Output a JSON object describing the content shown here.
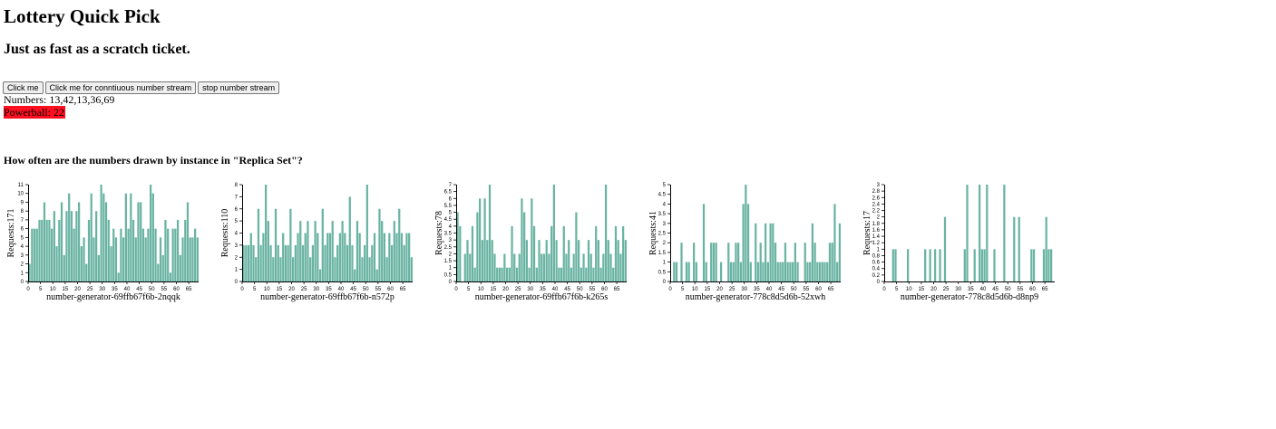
{
  "page": {
    "title": "Lottery Quick Pick",
    "subtitle": "Just as fast as a scratch ticket."
  },
  "controls": {
    "click_label": "Click me",
    "continuous_label": "Click me for conntiuous number stream",
    "stop_label": "stop number stream"
  },
  "result": {
    "numbers_text": "Numbers: 13,42,13,36,69",
    "powerball_text": "Powerball: 22",
    "powerball_color": "#ff0f1f"
  },
  "section": {
    "heading": "How often are the numbers drawn by instance in \"Replica Set\"?"
  },
  "colors": {
    "bar": "#69b3a2"
  },
  "chart_data": [
    {
      "type": "bar",
      "title": "",
      "xlabel": "number-generator-69ffb67f6b-2nqqk",
      "ylabel": "Requests:171",
      "xlim": [
        0,
        69
      ],
      "ylim": [
        0,
        11
      ],
      "yticks": [
        0,
        1,
        2,
        3,
        4,
        5,
        6,
        7,
        8,
        9,
        10,
        11
      ],
      "xticks": [
        0,
        5,
        10,
        15,
        20,
        25,
        30,
        35,
        40,
        45,
        50,
        55,
        60,
        65
      ],
      "x": [
        1,
        2,
        3,
        4,
        5,
        6,
        7,
        8,
        9,
        10,
        11,
        12,
        13,
        14,
        15,
        16,
        17,
        18,
        19,
        20,
        21,
        22,
        23,
        24,
        25,
        26,
        27,
        28,
        29,
        30,
        31,
        32,
        33,
        34,
        35,
        36,
        37,
        38,
        39,
        40,
        41,
        42,
        43,
        44,
        45,
        46,
        47,
        48,
        49,
        50,
        51,
        52,
        53,
        54,
        55,
        56,
        57,
        58,
        59,
        60,
        61,
        62,
        63,
        64,
        65,
        66,
        67,
        68,
        69
      ],
      "values": [
        2,
        6,
        6,
        6,
        7,
        7,
        9,
        7,
        7,
        6,
        8,
        4,
        7,
        9,
        3,
        8,
        10,
        8,
        6,
        8,
        9,
        4,
        5,
        2,
        7,
        10,
        5,
        8,
        3,
        11,
        10,
        9,
        7,
        4,
        6,
        5,
        1,
        6,
        5,
        10,
        6,
        10,
        7,
        5,
        9,
        9,
        6,
        5,
        6,
        11,
        10,
        6,
        2,
        5,
        3,
        7,
        6,
        1,
        6,
        6,
        7,
        3,
        5,
        7,
        9,
        5,
        5,
        6,
        5
      ]
    },
    {
      "type": "bar",
      "title": "",
      "xlabel": "number-generator-69ffb67f6b-n572p",
      "ylabel": "Requests:110",
      "xlim": [
        0,
        69
      ],
      "ylim": [
        0,
        8
      ],
      "yticks": [
        0,
        1,
        2,
        3,
        4,
        5,
        6,
        7,
        8
      ],
      "xticks": [
        0,
        5,
        10,
        15,
        20,
        25,
        30,
        35,
        40,
        45,
        50,
        55,
        60,
        65
      ],
      "x": [
        1,
        2,
        3,
        4,
        5,
        6,
        7,
        8,
        9,
        10,
        11,
        12,
        13,
        14,
        15,
        16,
        17,
        18,
        19,
        20,
        21,
        22,
        23,
        24,
        25,
        26,
        27,
        28,
        29,
        30,
        31,
        32,
        33,
        34,
        35,
        36,
        37,
        38,
        39,
        40,
        41,
        42,
        43,
        44,
        45,
        46,
        47,
        48,
        49,
        50,
        51,
        52,
        53,
        54,
        55,
        56,
        57,
        58,
        59,
        60,
        61,
        62,
        63,
        64,
        65,
        66,
        67,
        68,
        69
      ],
      "values": [
        3,
        3,
        3,
        4,
        3,
        2,
        6,
        3,
        4,
        8,
        5,
        3,
        2,
        6,
        3,
        2,
        4,
        3,
        3,
        6,
        2,
        3,
        4,
        5,
        3,
        4,
        5,
        2,
        3,
        5,
        4,
        1,
        6,
        3,
        4,
        4,
        5,
        2,
        3,
        4,
        5,
        4,
        3,
        7,
        3,
        1,
        5,
        4,
        2,
        3,
        8,
        2,
        3,
        4,
        1,
        6,
        5,
        4,
        2,
        4,
        3,
        5,
        4,
        6,
        4,
        3,
        4,
        4,
        2
      ]
    },
    {
      "type": "bar",
      "title": "",
      "xlabel": "number-generator-69ffb67f6b-k265s",
      "ylabel": "Requests:78",
      "xlim": [
        0,
        69
      ],
      "ylim": [
        0,
        7
      ],
      "yticks": [
        0,
        0.5,
        1,
        1.5,
        2,
        2.5,
        3,
        3.5,
        4,
        4.5,
        5,
        5.5,
        6,
        6.5,
        7
      ],
      "xticks": [
        0,
        5,
        10,
        15,
        20,
        25,
        30,
        35,
        40,
        45,
        50,
        55,
        60,
        65
      ],
      "x": [
        1,
        2,
        3,
        4,
        5,
        6,
        7,
        8,
        9,
        10,
        11,
        12,
        13,
        14,
        15,
        16,
        17,
        18,
        19,
        20,
        21,
        22,
        23,
        24,
        25,
        26,
        27,
        28,
        29,
        30,
        31,
        32,
        33,
        34,
        35,
        36,
        37,
        38,
        39,
        40,
        41,
        42,
        43,
        44,
        45,
        46,
        47,
        48,
        49,
        50,
        51,
        52,
        53,
        54,
        55,
        56,
        57,
        58,
        59,
        60,
        61,
        62,
        63,
        64,
        65,
        66,
        67,
        68,
        69
      ],
      "values": [
        5,
        4,
        0,
        2,
        3,
        2,
        4,
        1,
        5,
        6,
        3,
        6,
        3,
        7,
        3,
        2,
        1,
        1,
        1,
        2,
        1,
        1,
        4,
        2,
        1,
        2,
        6,
        5,
        3,
        1,
        6,
        4,
        1,
        3,
        2,
        2,
        3,
        2,
        4,
        7,
        3,
        1,
        1,
        4,
        2,
        3,
        1,
        2,
        5,
        3,
        1,
        2,
        1,
        3,
        2,
        1,
        4,
        3,
        1,
        2,
        7,
        3,
        2,
        1,
        4,
        3,
        2,
        4,
        3
      ]
    },
    {
      "type": "bar",
      "title": "",
      "xlabel": "number-generator-778c8d5d6b-52xwh",
      "ylabel": "Requests:41",
      "xlim": [
        0,
        69
      ],
      "ylim": [
        0,
        5
      ],
      "yticks": [
        0,
        0.5,
        1,
        1.5,
        2,
        2.5,
        3,
        3.5,
        4,
        4.5,
        5
      ],
      "xticks": [
        0,
        5,
        10,
        15,
        20,
        25,
        30,
        35,
        40,
        45,
        50,
        55,
        60,
        65
      ],
      "x": [
        1,
        2,
        3,
        4,
        5,
        6,
        7,
        8,
        9,
        10,
        11,
        12,
        13,
        14,
        15,
        16,
        17,
        18,
        19,
        20,
        21,
        22,
        23,
        24,
        25,
        26,
        27,
        28,
        29,
        30,
        31,
        32,
        33,
        34,
        35,
        36,
        37,
        38,
        39,
        40,
        41,
        42,
        43,
        44,
        45,
        46,
        47,
        48,
        49,
        50,
        51,
        52,
        53,
        54,
        55,
        56,
        57,
        58,
        59,
        60,
        61,
        62,
        63,
        64,
        65,
        66,
        67,
        68,
        69
      ],
      "values": [
        0,
        1,
        1,
        0,
        2,
        0,
        1,
        1,
        0,
        2,
        1,
        0,
        0,
        4,
        1,
        0,
        2,
        2,
        2,
        0,
        1,
        0,
        0,
        2,
        1,
        1,
        2,
        2,
        1,
        4,
        5,
        4,
        1,
        0,
        3,
        1,
        2,
        1,
        3,
        1,
        3,
        3,
        2,
        1,
        1,
        1,
        2,
        1,
        1,
        1,
        2,
        1,
        0,
        0,
        2,
        1,
        1,
        3,
        2,
        1,
        1,
        1,
        1,
        1,
        2,
        2,
        4,
        1,
        3
      ]
    },
    {
      "type": "bar",
      "title": "",
      "xlabel": "number-generator-778c8d5d6b-d8np9",
      "ylabel": "Requests:17",
      "xlim": [
        0,
        69
      ],
      "ylim": [
        0,
        3
      ],
      "yticks": [
        0,
        0.2,
        0.4,
        0.6,
        0.8,
        1,
        1.2,
        1.4,
        1.6,
        1.8,
        2,
        2.2,
        2.4,
        2.6,
        2.8,
        3
      ],
      "xticks": [
        0,
        5,
        10,
        15,
        20,
        25,
        30,
        35,
        40,
        45,
        50,
        55,
        60,
        65
      ],
      "x": [
        1,
        2,
        3,
        4,
        5,
        6,
        7,
        8,
        9,
        10,
        11,
        12,
        13,
        14,
        15,
        16,
        17,
        18,
        19,
        20,
        21,
        22,
        23,
        24,
        25,
        26,
        27,
        28,
        29,
        30,
        31,
        32,
        33,
        34,
        35,
        36,
        37,
        38,
        39,
        40,
        41,
        42,
        43,
        44,
        45,
        46,
        47,
        48,
        49,
        50,
        51,
        52,
        53,
        54,
        55,
        56,
        57,
        58,
        59,
        60,
        61,
        62,
        63,
        64,
        65,
        66,
        67,
        68,
        69
      ],
      "values": [
        0,
        0,
        0,
        1,
        1,
        0,
        0,
        0,
        0,
        1,
        0,
        0,
        0,
        0,
        0,
        0,
        1,
        0,
        1,
        0,
        1,
        0,
        1,
        0,
        2,
        0,
        0,
        0,
        0,
        0,
        0,
        0,
        1,
        3,
        0,
        0,
        1,
        0,
        3,
        1,
        1,
        3,
        0,
        0,
        1,
        0,
        0,
        0,
        3,
        0,
        0,
        0,
        2,
        0,
        2,
        0,
        0,
        0,
        0,
        1,
        1,
        0,
        0,
        0,
        1,
        2,
        1,
        1,
        0
      ]
    }
  ]
}
